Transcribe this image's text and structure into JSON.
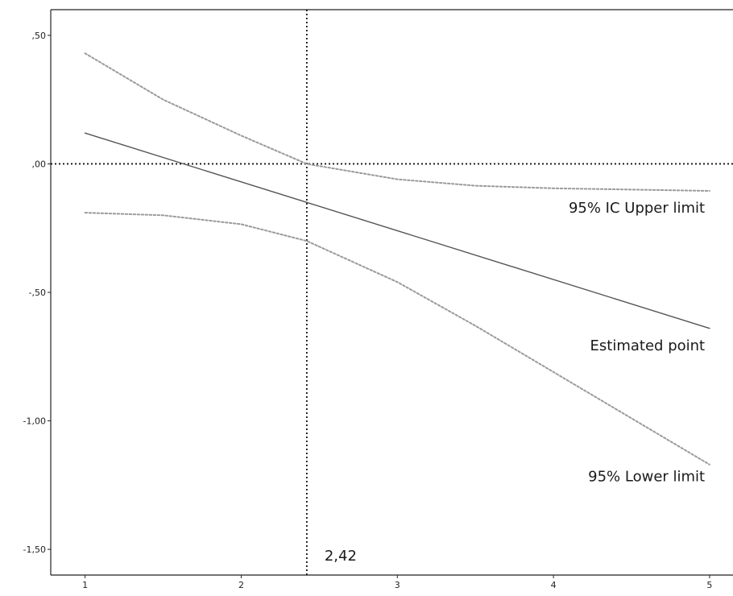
{
  "chart_data": {
    "type": "line",
    "title": "",
    "xlabel": "",
    "ylabel": "",
    "xlim": [
      0.78,
      5.15
    ],
    "ylim": [
      -1.6,
      0.6
    ],
    "x_ticks": [
      1,
      2,
      3,
      4,
      5
    ],
    "x_tick_labels": [
      "1",
      "2",
      "3",
      "4",
      "5"
    ],
    "y_ticks": [
      0.5,
      0,
      -0.5,
      -1.0,
      -1.5
    ],
    "y_tick_labels": [
      ",50",
      ",00",
      "-,50",
      "-1,00",
      "-1,50"
    ],
    "grid": false,
    "colors": {
      "estimate": "#555555",
      "ci": "#9a9a9a",
      "reference": "#111111"
    },
    "series": [
      {
        "name": "Estimated point",
        "style": "solid",
        "x": [
          1,
          5
        ],
        "y": [
          0.12,
          -0.64
        ]
      },
      {
        "name": "95% IC Upper limit",
        "style": "dotted",
        "x": [
          1,
          1.5,
          2,
          2.42,
          3,
          3.5,
          4,
          4.5,
          5
        ],
        "y": [
          0.43,
          0.25,
          0.11,
          0.0,
          -0.06,
          -0.085,
          -0.095,
          -0.1,
          -0.105
        ]
      },
      {
        "name": "95% Lower limit",
        "style": "dotted",
        "x": [
          1,
          1.5,
          2,
          2.42,
          3,
          3.5,
          4,
          4.5,
          5
        ],
        "y": [
          -0.19,
          -0.2,
          -0.235,
          -0.3,
          -0.46,
          -0.63,
          -0.81,
          -0.99,
          -1.17
        ]
      }
    ],
    "reference_lines": [
      {
        "axis": "y",
        "value": 0,
        "style": "dotted"
      },
      {
        "axis": "x",
        "value": 2.42,
        "style": "dotted",
        "label": "2,42"
      }
    ],
    "annotations": [
      {
        "text": "95% IC Upper limit",
        "x": 4.97,
        "y": -0.19
      },
      {
        "text": "Estimated point",
        "x": 4.97,
        "y": -0.725
      },
      {
        "text": "95% Lower limit",
        "x": 4.97,
        "y": -1.235
      }
    ]
  }
}
